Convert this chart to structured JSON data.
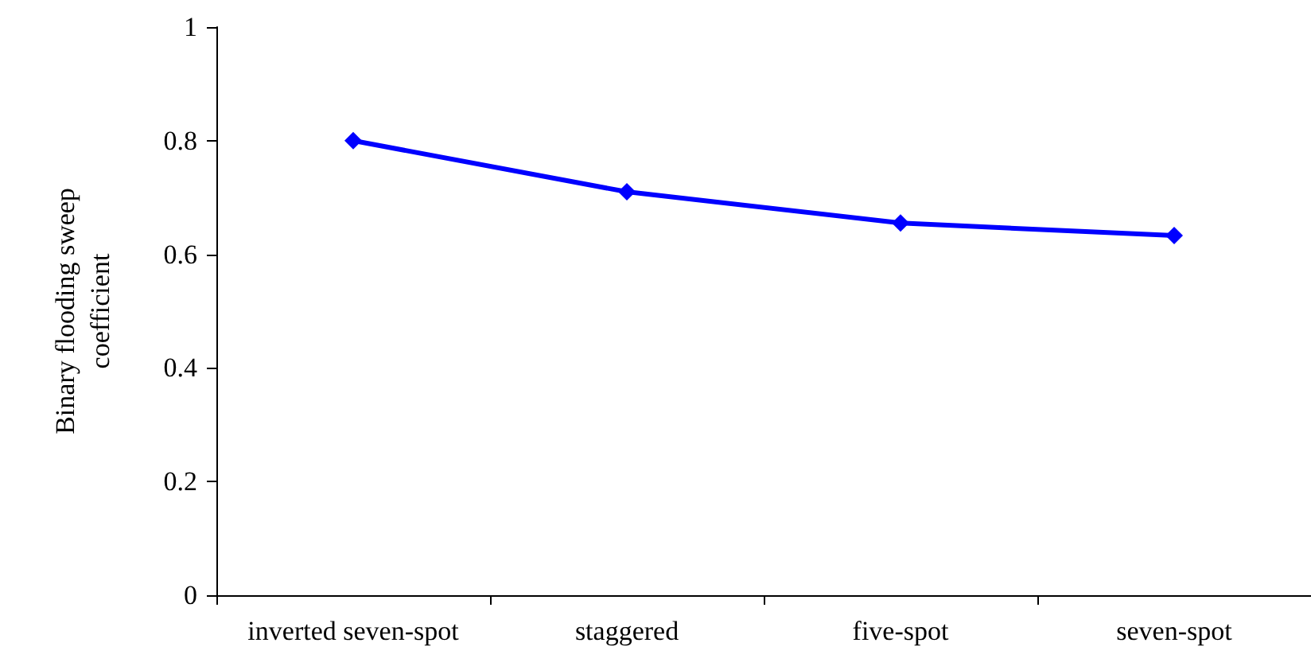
{
  "chart_data": {
    "type": "line",
    "ylabel": "Binary flooding sweep\ncoefficient",
    "categories": [
      "inverted seven-spot",
      "staggered",
      "five-spot",
      "seven-spot"
    ],
    "series": [
      {
        "color": "#0000ff",
        "values": [
          0.8,
          0.71,
          0.655,
          0.633
        ]
      }
    ],
    "ylim": [
      0,
      1
    ],
    "yticks": [
      0,
      0.2,
      0.4,
      0.6,
      0.8,
      1
    ],
    "marker": "diamond",
    "line_style": "solid"
  }
}
